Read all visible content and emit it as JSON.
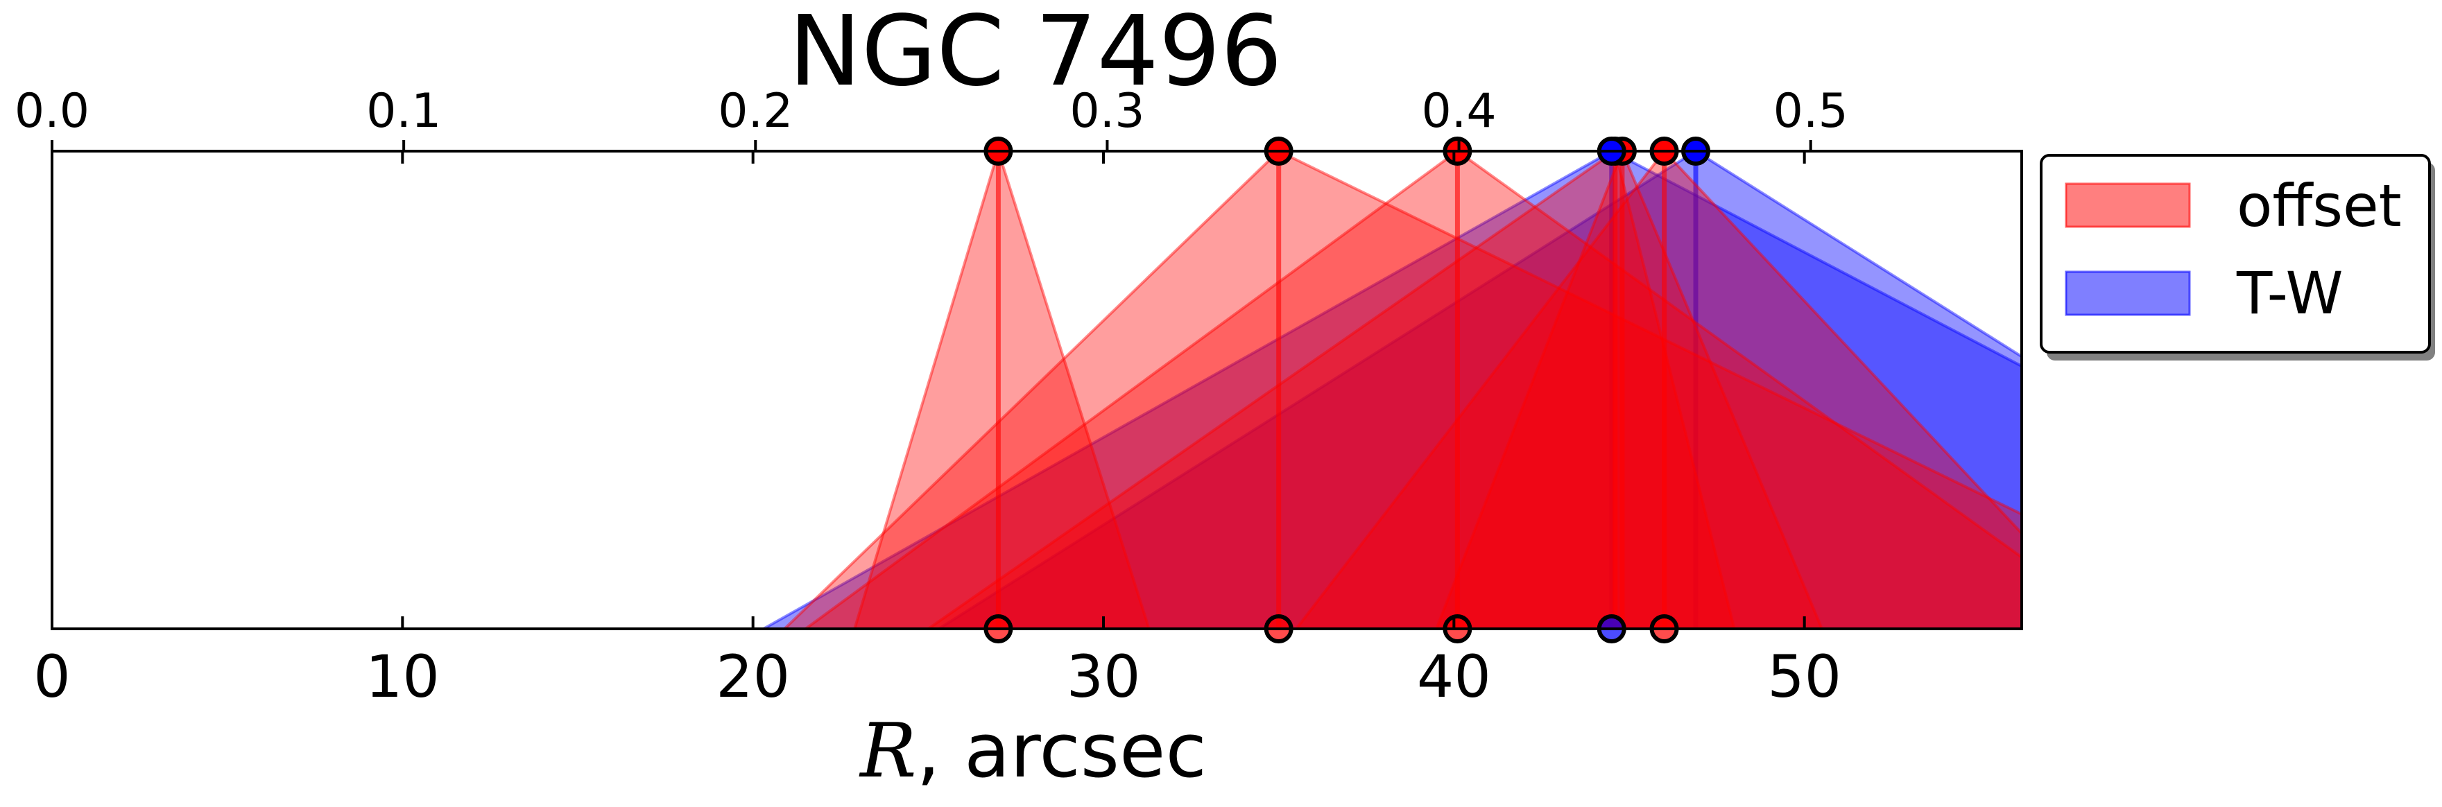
{
  "chart_data": {
    "type": "area",
    "title": "NGC 7496",
    "xlabel_var": "R",
    "xlabel_unit": ", arcsec",
    "xlim": [
      0,
      56.2
    ],
    "x_ticks": [
      "0",
      "10",
      "20",
      "30",
      "40",
      "50"
    ],
    "x_ticks_values": [
      0,
      10,
      20,
      30,
      40,
      50
    ],
    "top_axis": {
      "ticks": [
        "0.0",
        "0.1",
        "0.2",
        "0.3",
        "0.4",
        "0.5"
      ],
      "ticks_values": [
        0.0,
        0.1,
        0.2,
        0.3,
        0.4,
        0.5
      ],
      "range": [
        0.0,
        0.56
      ]
    },
    "ylim": [
      0,
      1
    ],
    "grid": false,
    "legend_placement": "outside upper right",
    "legend": [
      {
        "label": "offset",
        "color": "#ff0000"
      },
      {
        "label": "T-W",
        "color": "#0000ff"
      }
    ],
    "series": [
      {
        "group": "offset",
        "peak": 27.0,
        "left": 22.9,
        "right": 31.3,
        "marker_bottom": true
      },
      {
        "group": "offset",
        "peak": 35.0,
        "left": 20.9,
        "right": 56.2,
        "right_y": 0.24,
        "marker_bottom": true
      },
      {
        "group": "offset",
        "peak": 40.1,
        "left": 21.5,
        "right": 56.2,
        "right_y": 0.15,
        "marker_bottom": true
      },
      {
        "group": "offset",
        "peak": 44.6,
        "left": 25.0,
        "right": 48.0,
        "marker_bottom": false
      },
      {
        "group": "offset",
        "peak": 46.0,
        "left": 35.5,
        "right": 56.2,
        "right_y": 0.2,
        "marker_bottom": true
      },
      {
        "group": "offset",
        "peak": 44.8,
        "left": 39.5,
        "right": 50.5,
        "marker_bottom": false
      },
      {
        "group": "T-W",
        "peak": 44.5,
        "left": 20.3,
        "right": 56.2,
        "right_y": 0.55,
        "marker_bottom": true
      },
      {
        "group": "T-W",
        "peak": 46.9,
        "left": 25.3,
        "right": 56.2,
        "right_y": 0.57,
        "marker_bottom": false
      }
    ]
  }
}
